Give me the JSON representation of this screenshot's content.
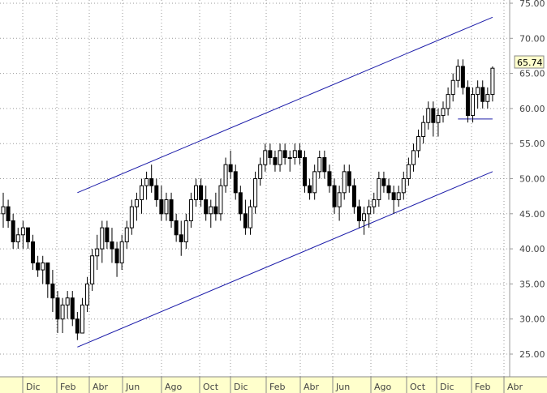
{
  "chart_data": {
    "type": "candlestick",
    "background": "#ffffff",
    "axis_band_color": "#ffffcc",
    "grid": {
      "enabled": true,
      "style": "dotted",
      "color": "#999999"
    },
    "y_axis": {
      "position": "right",
      "ylim": [
        20,
        75
      ],
      "ticks": [
        "25.00",
        "30.00",
        "35.00",
        "40.00",
        "45.00",
        "50.00",
        "55.00",
        "60.00",
        "65.00",
        "70.00",
        "75.00"
      ]
    },
    "x_axis": {
      "ticks": [
        "Dic",
        "Feb",
        "Abr",
        "Jun",
        "Ago",
        "Oct",
        "Dic",
        "Feb",
        "Abr",
        "Jun",
        "Ago",
        "Oct",
        "Dic",
        "Feb",
        "Abr"
      ]
    },
    "last_price": "65.74",
    "last_price_box_color": "#ffffcc",
    "candle_color": "#000000",
    "candles": [
      [
        0,
        45,
        48,
        43,
        46
      ],
      [
        1,
        46,
        47,
        43,
        44
      ],
      [
        2,
        44,
        45,
        40,
        41
      ],
      [
        3,
        41,
        43,
        40,
        42
      ],
      [
        4,
        42,
        44,
        40,
        43
      ],
      [
        5,
        43,
        43,
        40,
        41
      ],
      [
        6,
        41,
        42,
        37,
        38
      ],
      [
        7,
        38,
        39,
        36,
        37
      ],
      [
        8,
        37,
        39,
        35,
        38
      ],
      [
        9,
        38,
        38,
        33,
        35
      ],
      [
        10,
        35,
        37,
        31,
        33
      ],
      [
        11,
        33,
        34,
        28,
        30
      ],
      [
        12,
        30,
        33,
        28,
        32
      ],
      [
        13,
        32,
        34,
        30,
        33
      ],
      [
        14,
        33,
        34,
        29,
        30
      ],
      [
        15,
        30,
        31,
        27,
        28
      ],
      [
        16,
        28,
        33,
        28,
        32
      ],
      [
        17,
        32,
        36,
        31,
        35
      ],
      [
        18,
        35,
        40,
        34,
        39
      ],
      [
        19,
        39,
        42,
        37,
        40
      ],
      [
        20,
        40,
        44,
        38,
        43
      ],
      [
        21,
        43,
        44,
        40,
        41
      ],
      [
        22,
        41,
        43,
        38,
        40
      ],
      [
        23,
        40,
        41,
        36,
        38
      ],
      [
        24,
        38,
        42,
        37,
        41
      ],
      [
        25,
        41,
        44,
        40,
        43
      ],
      [
        26,
        43,
        47,
        42,
        46
      ],
      [
        27,
        46,
        48,
        44,
        47
      ],
      [
        28,
        47,
        50,
        45,
        49
      ],
      [
        29,
        49,
        51,
        47,
        50
      ],
      [
        30,
        50,
        52,
        48,
        49
      ],
      [
        31,
        49,
        50,
        46,
        47
      ],
      [
        32,
        47,
        49,
        44,
        45
      ],
      [
        33,
        45,
        48,
        44,
        47
      ],
      [
        34,
        47,
        48,
        43,
        44
      ],
      [
        35,
        44,
        45,
        41,
        42
      ],
      [
        36,
        42,
        44,
        39,
        41
      ],
      [
        37,
        41,
        45,
        40,
        44
      ],
      [
        38,
        44,
        48,
        43,
        47
      ],
      [
        39,
        47,
        50,
        46,
        49
      ],
      [
        40,
        49,
        50,
        46,
        47
      ],
      [
        41,
        47,
        49,
        44,
        45
      ],
      [
        42,
        45,
        47,
        43,
        46
      ],
      [
        43,
        46,
        48,
        44,
        45
      ],
      [
        44,
        45,
        50,
        44,
        49
      ],
      [
        45,
        49,
        53,
        48,
        52
      ],
      [
        46,
        52,
        54,
        50,
        51
      ],
      [
        47,
        51,
        52,
        47,
        48
      ],
      [
        48,
        48,
        49,
        44,
        45
      ],
      [
        49,
        45,
        47,
        42,
        43
      ],
      [
        50,
        43,
        47,
        42,
        46
      ],
      [
        51,
        46,
        51,
        45,
        50
      ],
      [
        52,
        50,
        53,
        49,
        52
      ],
      [
        53,
        52,
        55,
        51,
        54
      ],
      [
        54,
        54,
        55,
        52,
        53
      ],
      [
        55,
        53,
        54,
        51,
        52
      ],
      [
        56,
        52,
        55,
        51,
        54
      ],
      [
        57,
        54,
        55,
        52,
        53
      ],
      [
        58,
        53,
        54,
        51,
        53
      ],
      [
        59,
        53,
        55,
        52,
        54
      ],
      [
        60,
        54,
        55,
        52,
        53
      ],
      [
        61,
        53,
        54,
        48,
        49
      ],
      [
        62,
        49,
        50,
        47,
        48
      ],
      [
        63,
        48,
        52,
        47,
        51
      ],
      [
        64,
        51,
        54,
        50,
        53
      ],
      [
        65,
        53,
        54,
        50,
        51
      ],
      [
        66,
        51,
        52,
        48,
        49
      ],
      [
        67,
        49,
        50,
        45,
        46
      ],
      [
        68,
        46,
        49,
        44,
        48
      ],
      [
        69,
        48,
        52,
        47,
        51
      ],
      [
        70,
        51,
        52,
        48,
        49
      ],
      [
        71,
        49,
        50,
        45,
        46
      ],
      [
        72,
        46,
        47,
        43,
        44
      ],
      [
        73,
        44,
        46,
        42,
        45
      ],
      [
        74,
        45,
        47,
        43,
        46
      ],
      [
        75,
        46,
        48,
        45,
        47
      ],
      [
        76,
        47,
        51,
        46,
        50
      ],
      [
        77,
        50,
        51,
        48,
        49
      ],
      [
        78,
        49,
        50,
        47,
        48
      ],
      [
        79,
        48,
        49,
        45,
        47
      ],
      [
        80,
        47,
        49,
        46,
        48
      ],
      [
        81,
        48,
        51,
        47,
        50
      ],
      [
        82,
        50,
        53,
        49,
        52
      ],
      [
        83,
        52,
        55,
        51,
        54
      ],
      [
        84,
        54,
        57,
        53,
        56
      ],
      [
        85,
        56,
        59,
        55,
        58
      ],
      [
        86,
        58,
        61,
        57,
        60
      ],
      [
        87,
        60,
        61,
        56,
        58
      ],
      [
        88,
        58,
        60,
        56,
        59
      ],
      [
        89,
        59,
        61,
        58,
        60
      ],
      [
        90,
        60,
        63,
        59,
        62
      ],
      [
        91,
        62,
        65,
        61,
        64
      ],
      [
        92,
        64,
        67,
        63,
        66
      ],
      [
        93,
        66,
        67,
        62,
        63
      ],
      [
        94,
        63,
        64,
        58,
        59
      ],
      [
        95,
        59,
        63,
        58,
        62
      ],
      [
        96,
        62,
        64,
        60,
        63
      ],
      [
        97,
        63,
        64,
        60,
        61
      ],
      [
        98,
        61,
        63,
        60,
        62
      ],
      [
        99,
        62,
        66,
        61,
        65.74
      ]
    ],
    "annotations": [
      {
        "type": "trend_line",
        "color": "#1a1aa8",
        "role": "upper-channel",
        "from": [
          15,
          48
        ],
        "to": [
          99,
          73
        ]
      },
      {
        "type": "trend_line",
        "color": "#1a1aa8",
        "role": "lower-channel",
        "from": [
          15,
          26
        ],
        "to": [
          99,
          51
        ]
      },
      {
        "type": "horizontal_line",
        "color": "#1a1aa8",
        "role": "support",
        "from": [
          92,
          58.5
        ],
        "to": [
          99,
          58.5
        ]
      }
    ]
  }
}
